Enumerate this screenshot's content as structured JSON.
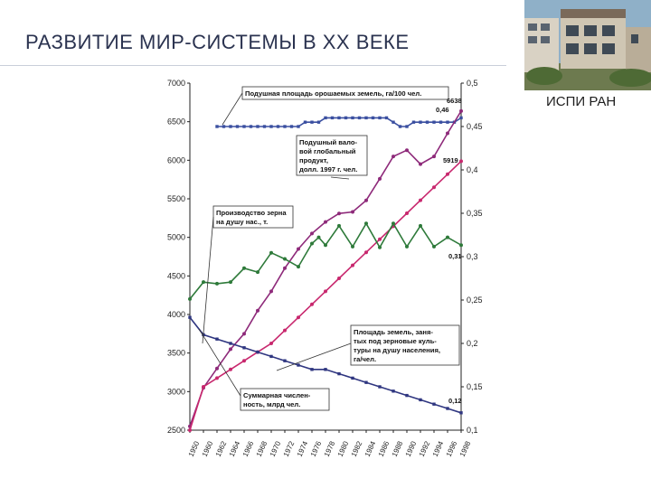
{
  "slide": {
    "title": "РАЗВИТИЕ МИР-СИСТЕМЫ В XX ВЕКЕ",
    "organization": "ИСПИ РАН"
  },
  "colors": {
    "irrigated": "#3a4fa0",
    "gdp": "#8e2a7a",
    "population": "#c8286e",
    "grain": "#2e7a3a",
    "grain_land": "#2f3680",
    "axis": "#222222"
  },
  "chart_data": {
    "type": "line",
    "x_ticks": [
      "1950",
      "1960",
      "1962",
      "1964",
      "1966",
      "1968",
      "1970",
      "1972",
      "1974",
      "1976",
      "1978",
      "1980",
      "1982",
      "1984",
      "1986",
      "1988",
      "1990",
      "1992",
      "1994",
      "1996",
      "1998"
    ],
    "left_ticks": [
      "7000",
      "6500",
      "6000",
      "5500",
      "5000",
      "4500",
      "4000",
      "3500",
      "3000",
      "2500"
    ],
    "right_ticks": [
      "0,5",
      "0,45",
      "0,4",
      "0,35",
      "0,3",
      "0,25",
      "0,2",
      "0,15",
      "0,1"
    ],
    "left_range": [
      2500,
      7000
    ],
    "right_range": [
      0.1,
      0.5
    ],
    "annotations": {
      "irrigated_label": "Подушная площадь орошаемых земель, га/100 чел.",
      "gdp_label": [
        "Подушный вало-",
        "вой глобальный",
        "продукт,",
        "долл. 1997 г. чел."
      ],
      "grain_label": [
        "Производство зерна",
        "на душу нас., т."
      ],
      "grain_land_label": [
        "Площадь земель, заня-",
        "тых под зерновые куль-",
        "туры на душу населения,",
        "га/чел."
      ],
      "population_label": [
        "Суммарная числен-",
        "ность, млрд чел."
      ],
      "v_6638": "6638",
      "v_046": "0,46",
      "v_5919": "5919",
      "v_031": "0,31",
      "v_012": "0,12"
    },
    "series": [
      {
        "key": "irrigated",
        "axis": "right",
        "x": [
          1962,
          1963,
          1964,
          1965,
          1966,
          1967,
          1968,
          1969,
          1970,
          1971,
          1972,
          1973,
          1974,
          1975,
          1976,
          1977,
          1978,
          1979,
          1980,
          1981,
          1982,
          1983,
          1984,
          1985,
          1986,
          1987,
          1988,
          1989,
          1990,
          1991,
          1992,
          1993,
          1994,
          1995,
          1996,
          1997,
          1998
        ],
        "y": [
          0.45,
          0.45,
          0.45,
          0.45,
          0.45,
          0.45,
          0.45,
          0.45,
          0.45,
          0.45,
          0.45,
          0.45,
          0.45,
          0.455,
          0.455,
          0.455,
          0.46,
          0.46,
          0.46,
          0.46,
          0.46,
          0.46,
          0.46,
          0.46,
          0.46,
          0.46,
          0.455,
          0.45,
          0.45,
          0.455,
          0.455,
          0.455,
          0.455,
          0.455,
          0.455,
          0.455,
          0.46
        ]
      },
      {
        "key": "gdp",
        "axis": "left",
        "x": [
          1950,
          1960,
          1962,
          1964,
          1966,
          1968,
          1970,
          1972,
          1974,
          1976,
          1978,
          1980,
          1982,
          1984,
          1986,
          1988,
          1990,
          1992,
          1994,
          1996,
          1998
        ],
        "y": [
          2550,
          3050,
          3300,
          3550,
          3750,
          4050,
          4300,
          4600,
          4850,
          5050,
          5200,
          5310,
          5330,
          5480,
          5760,
          6050,
          6130,
          5950,
          6050,
          6350,
          6638
        ]
      },
      {
        "key": "population",
        "axis": "right",
        "x": [
          1950,
          1960,
          1962,
          1964,
          1966,
          1968,
          1970,
          1972,
          1974,
          1976,
          1978,
          1980,
          1982,
          1984,
          1986,
          1988,
          1990,
          1992,
          1994,
          1996,
          1998
        ],
        "y": [
          0.1,
          0.15,
          0.16,
          0.17,
          0.18,
          0.19,
          0.2,
          0.215,
          0.23,
          0.245,
          0.26,
          0.275,
          0.29,
          0.305,
          0.32,
          0.335,
          0.35,
          0.365,
          0.38,
          0.395,
          0.41
        ]
      },
      {
        "key": "grain",
        "axis": "left",
        "x": [
          1950,
          1960,
          1962,
          1964,
          1966,
          1968,
          1970,
          1972,
          1974,
          1976,
          1977,
          1978,
          1980,
          1982,
          1984,
          1986,
          1988,
          1990,
          1992,
          1994,
          1996,
          1998
        ],
        "y": [
          4200,
          4420,
          4400,
          4420,
          4600,
          4550,
          4800,
          4720,
          4620,
          4920,
          5000,
          4900,
          5150,
          4880,
          5180,
          4870,
          5180,
          4880,
          5150,
          4880,
          5000,
          4900
        ]
      },
      {
        "key": "grain_land",
        "axis": "right",
        "x": [
          1950,
          1960,
          1962,
          1964,
          1966,
          1968,
          1970,
          1972,
          1974,
          1976,
          1978,
          1980,
          1982,
          1984,
          1986,
          1988,
          1990,
          1992,
          1994,
          1996,
          1998
        ],
        "y": [
          0.23,
          0.21,
          0.205,
          0.2,
          0.195,
          0.19,
          0.185,
          0.18,
          0.175,
          0.17,
          0.17,
          0.165,
          0.16,
          0.155,
          0.15,
          0.145,
          0.14,
          0.135,
          0.13,
          0.125,
          0.12
        ]
      }
    ]
  }
}
